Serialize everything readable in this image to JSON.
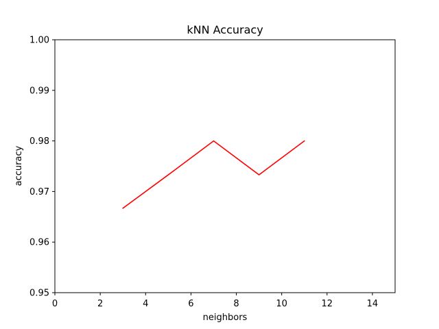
{
  "chart_data": {
    "type": "line",
    "title": "kNN Accuracy",
    "xlabel": "neighbors",
    "ylabel": "accuracy",
    "xlim": [
      0,
      15
    ],
    "ylim": [
      0.95,
      1.0
    ],
    "xticks": [
      0,
      2,
      4,
      6,
      8,
      10,
      12,
      14
    ],
    "yticks": [
      0.95,
      0.96,
      0.97,
      0.98,
      0.99,
      1.0
    ],
    "xtick_labels": [
      "0",
      "2",
      "4",
      "6",
      "8",
      "10",
      "12",
      "14"
    ],
    "ytick_labels": [
      "0.95",
      "0.96",
      "0.97",
      "0.98",
      "0.99",
      "1.00"
    ],
    "grid": false,
    "series": [
      {
        "color": "#ff0000",
        "x": [
          3,
          5,
          7,
          9,
          11
        ],
        "y": [
          0.9667,
          0.9733,
          0.98,
          0.9733,
          0.98
        ]
      }
    ]
  }
}
